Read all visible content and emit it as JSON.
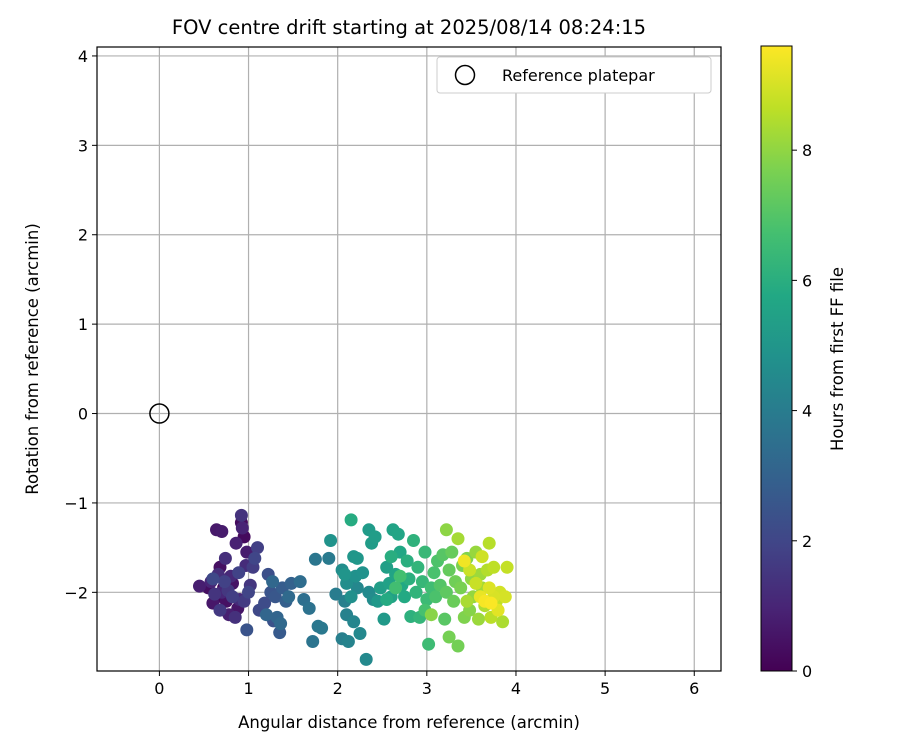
{
  "chart_data": {
    "type": "scatter",
    "title": "FOV centre drift starting at 2025/08/14 08:24:15",
    "xlabel": "Angular distance from reference (arcmin)",
    "ylabel": "Rotation from reference (arcmin)",
    "xlim": [
      -0.7,
      6.3
    ],
    "ylim": [
      -2.88,
      4.1
    ],
    "xticks": [
      "0",
      "1",
      "2",
      "3",
      "4",
      "5",
      "6"
    ],
    "yticks": [
      "−2",
      "−1",
      "0",
      "1",
      "2",
      "3",
      "4"
    ],
    "grid": true,
    "colormap": "viridis",
    "colorbar": {
      "label": "Hours from first FF file",
      "range": [
        0,
        9.6
      ],
      "ticks": [
        "0",
        "2",
        "4",
        "6",
        "8"
      ]
    },
    "reference": {
      "name": "Reference platepar",
      "point": [
        0,
        0
      ],
      "marker": "open-circle",
      "color": "#000000"
    },
    "legend": {
      "position": "top-right",
      "entries": [
        "Reference platepar"
      ]
    },
    "series": [
      {
        "points": [
          [
            0.72,
            -1.95,
            0.1
          ],
          [
            0.65,
            -2.05,
            0.2
          ],
          [
            0.95,
            -1.38,
            0.25
          ],
          [
            0.92,
            -1.22,
            0.3
          ],
          [
            0.55,
            -1.95,
            0.35
          ],
          [
            0.68,
            -1.72,
            0.4
          ],
          [
            0.75,
            -2.1,
            0.45
          ],
          [
            0.82,
            -1.9,
            0.5
          ],
          [
            0.88,
            -2.18,
            0.55
          ],
          [
            0.6,
            -2.12,
            0.6
          ],
          [
            0.64,
            -1.3,
            0.65
          ],
          [
            0.7,
            -1.32,
            0.7
          ],
          [
            0.98,
            -1.55,
            0.75
          ],
          [
            0.45,
            -1.93,
            0.8
          ],
          [
            0.78,
            -2.25,
            0.85
          ],
          [
            0.86,
            -1.45,
            0.9
          ],
          [
            0.93,
            -1.28,
            0.95
          ],
          [
            0.58,
            -1.88,
            1.0
          ],
          [
            0.7,
            -2.0,
            1.05
          ],
          [
            0.8,
            -1.82,
            1.1
          ],
          [
            0.9,
            -2.08,
            1.15
          ],
          [
            0.97,
            -1.7,
            1.2
          ],
          [
            0.66,
            -1.8,
            1.25
          ],
          [
            0.74,
            -1.62,
            1.3
          ],
          [
            0.85,
            -2.28,
            1.35
          ],
          [
            0.92,
            -1.14,
            1.4
          ],
          [
            0.62,
            -2.02,
            1.45
          ],
          [
            1.02,
            -1.92,
            1.5
          ],
          [
            0.77,
            -1.98,
            1.55
          ],
          [
            0.68,
            -2.2,
            1.6
          ],
          [
            0.95,
            -2.1,
            1.65
          ],
          [
            1.05,
            -1.72,
            1.7
          ],
          [
            0.82,
            -2.05,
            1.75
          ],
          [
            1.1,
            -1.5,
            1.8
          ],
          [
            0.73,
            -1.88,
            1.85
          ],
          [
            0.89,
            -1.78,
            1.9
          ],
          [
            1.0,
            -2.0,
            1.95
          ],
          [
            1.07,
            -1.62,
            2.0
          ],
          [
            0.6,
            -1.85,
            2.05
          ],
          [
            1.12,
            -2.2,
            2.1
          ],
          [
            1.18,
            -2.12,
            2.2
          ],
          [
            1.22,
            -1.8,
            2.3
          ],
          [
            1.28,
            -2.32,
            2.4
          ],
          [
            0.98,
            -2.42,
            2.45
          ],
          [
            1.25,
            -2.0,
            2.5
          ],
          [
            1.3,
            -2.05,
            2.6
          ],
          [
            1.35,
            -2.45,
            2.7
          ],
          [
            1.38,
            -1.95,
            2.8
          ],
          [
            1.42,
            -2.1,
            2.9
          ],
          [
            1.48,
            -1.9,
            3.0
          ],
          [
            1.32,
            -2.28,
            3.1
          ],
          [
            1.2,
            -2.25,
            3.15
          ],
          [
            1.27,
            -1.88,
            3.2
          ],
          [
            1.36,
            -2.35,
            3.25
          ],
          [
            1.45,
            -2.05,
            3.3
          ],
          [
            1.58,
            -1.88,
            3.4
          ],
          [
            1.62,
            -2.08,
            3.5
          ],
          [
            1.68,
            -2.18,
            3.6
          ],
          [
            1.72,
            -2.55,
            3.7
          ],
          [
            1.75,
            -1.63,
            3.75
          ],
          [
            1.78,
            -2.38,
            3.8
          ],
          [
            1.82,
            -2.4,
            3.85
          ],
          [
            1.9,
            -1.62,
            3.9
          ],
          [
            1.98,
            -2.02,
            4.0
          ],
          [
            2.05,
            -2.52,
            4.1
          ],
          [
            2.08,
            -2.1,
            4.15
          ],
          [
            2.1,
            -2.25,
            4.2
          ],
          [
            2.12,
            -2.55,
            4.25
          ],
          [
            2.15,
            -1.85,
            4.3
          ],
          [
            2.18,
            -2.33,
            4.35
          ],
          [
            2.22,
            -1.95,
            4.4
          ],
          [
            2.25,
            -2.46,
            4.45
          ],
          [
            2.32,
            -2.75,
            4.5
          ],
          [
            2.35,
            -2.0,
            4.55
          ],
          [
            2.4,
            -2.08,
            4.6
          ],
          [
            2.05,
            -1.75,
            4.65
          ],
          [
            2.1,
            -1.9,
            4.7
          ],
          [
            2.15,
            -2.05,
            4.75
          ],
          [
            2.2,
            -1.82,
            4.8
          ],
          [
            2.28,
            -1.78,
            4.85
          ],
          [
            1.92,
            -1.42,
            4.9
          ],
          [
            2.08,
            -1.8,
            4.95
          ],
          [
            2.18,
            -1.6,
            5.0
          ],
          [
            2.22,
            -1.62,
            5.05
          ],
          [
            2.45,
            -2.1,
            5.1
          ],
          [
            2.52,
            -2.3,
            5.15
          ],
          [
            2.35,
            -1.3,
            5.2
          ],
          [
            2.38,
            -1.45,
            5.25
          ],
          [
            2.42,
            -1.38,
            5.3
          ],
          [
            2.48,
            -1.95,
            5.35
          ],
          [
            2.55,
            -1.72,
            5.4
          ],
          [
            2.58,
            -1.9,
            5.45
          ],
          [
            2.6,
            -2.05,
            5.5
          ],
          [
            2.62,
            -1.3,
            5.55
          ],
          [
            2.65,
            -1.8,
            5.6
          ],
          [
            2.68,
            -1.35,
            5.65
          ],
          [
            2.7,
            -1.55,
            5.7
          ],
          [
            2.72,
            -1.92,
            5.75
          ],
          [
            2.75,
            -2.05,
            5.8
          ],
          [
            2.55,
            -2.08,
            5.85
          ],
          [
            2.15,
            -1.19,
            5.9
          ],
          [
            2.6,
            -1.6,
            5.95
          ],
          [
            2.78,
            -1.65,
            6.0
          ],
          [
            2.8,
            -1.85,
            6.05
          ],
          [
            2.82,
            -2.27,
            6.1
          ],
          [
            2.85,
            -1.42,
            6.15
          ],
          [
            2.88,
            -2.0,
            6.2
          ],
          [
            2.9,
            -1.72,
            6.25
          ],
          [
            2.92,
            -2.28,
            6.3
          ],
          [
            2.95,
            -1.88,
            6.35
          ],
          [
            2.98,
            -1.55,
            6.4
          ],
          [
            3.0,
            -2.08,
            6.5
          ],
          [
            3.02,
            -2.58,
            6.55
          ],
          [
            3.05,
            -1.95,
            6.6
          ],
          [
            2.65,
            -1.95,
            6.65
          ],
          [
            2.7,
            -1.82,
            6.7
          ],
          [
            2.98,
            -2.2,
            6.75
          ],
          [
            3.08,
            -1.78,
            6.8
          ],
          [
            3.1,
            -2.05,
            6.85
          ],
          [
            3.12,
            -1.65,
            6.9
          ],
          [
            3.15,
            -1.92,
            7.0
          ],
          [
            3.18,
            -1.58,
            7.05
          ],
          [
            3.2,
            -2.3,
            7.1
          ],
          [
            3.22,
            -2.0,
            7.2
          ],
          [
            3.25,
            -1.75,
            7.3
          ],
          [
            3.28,
            -1.55,
            7.35
          ],
          [
            3.3,
            -2.1,
            7.4
          ],
          [
            3.32,
            -1.88,
            7.5
          ],
          [
            3.35,
            -2.6,
            7.55
          ],
          [
            3.25,
            -2.5,
            7.6
          ],
          [
            3.38,
            -1.95,
            7.65
          ],
          [
            3.4,
            -1.7,
            7.7
          ],
          [
            3.42,
            -2.28,
            7.75
          ],
          [
            3.45,
            -1.62,
            7.8
          ],
          [
            3.48,
            -2.2,
            7.85
          ],
          [
            3.05,
            -2.25,
            7.9
          ],
          [
            3.22,
            -1.3,
            7.95
          ],
          [
            3.5,
            -1.85,
            8.0
          ],
          [
            3.52,
            -2.05,
            8.05
          ],
          [
            3.55,
            -1.55,
            8.1
          ],
          [
            3.58,
            -2.3,
            8.15
          ],
          [
            3.6,
            -1.8,
            8.2
          ],
          [
            3.62,
            -1.95,
            8.25
          ],
          [
            3.35,
            -1.4,
            8.3
          ],
          [
            3.45,
            -2.1,
            8.35
          ],
          [
            3.85,
            -2.33,
            8.4
          ],
          [
            3.65,
            -2.15,
            8.45
          ],
          [
            3.68,
            -1.75,
            8.5
          ],
          [
            3.7,
            -1.45,
            8.55
          ],
          [
            3.72,
            -2.28,
            8.6
          ],
          [
            3.75,
            -1.72,
            8.65
          ],
          [
            3.78,
            -2.1,
            8.7
          ],
          [
            3.9,
            -1.72,
            8.75
          ],
          [
            3.55,
            -1.9,
            8.8
          ],
          [
            3.48,
            -1.75,
            8.85
          ],
          [
            3.62,
            -1.6,
            8.9
          ],
          [
            3.82,
            -2.0,
            8.95
          ],
          [
            3.88,
            -2.05,
            9.0
          ],
          [
            3.75,
            -2.05,
            9.05
          ],
          [
            3.7,
            -1.95,
            9.1
          ],
          [
            3.8,
            -2.2,
            9.2
          ],
          [
            3.6,
            -2.05,
            9.3
          ],
          [
            3.42,
            -1.65,
            9.4
          ],
          [
            3.65,
            -2.1,
            9.5
          ],
          [
            3.72,
            -2.12,
            9.55
          ]
        ]
      }
    ]
  }
}
